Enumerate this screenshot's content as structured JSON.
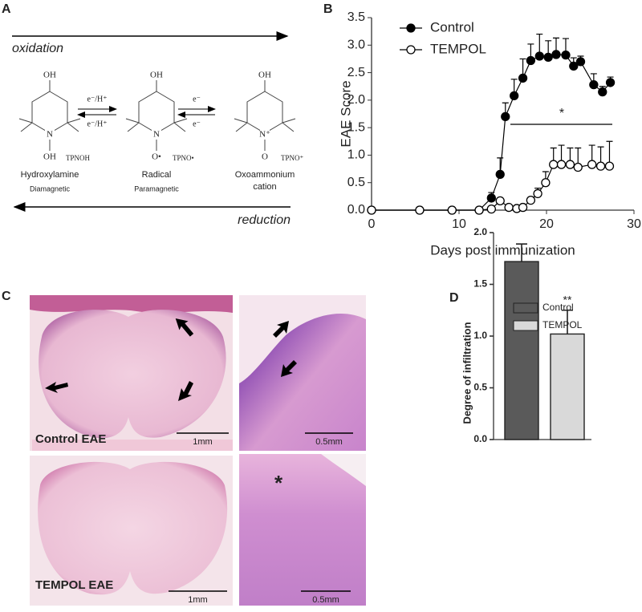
{
  "panel_labels": [
    "A",
    "B",
    "C",
    "D"
  ],
  "diagram": {
    "top_arrow": "oxidation",
    "bottom_arrow": "reduction",
    "molecules": [
      {
        "name": [
          "Hydroxylamine"
        ],
        "property": "Diamagnetic",
        "code": "TPNOH",
        "top": "OH",
        "center": "N",
        "bottom": "OH"
      },
      {
        "name": [
          "Radical"
        ],
        "property": "Paramagnetic",
        "code": "TPNO•",
        "top": "OH",
        "center": "N",
        "bottom": "O•"
      },
      {
        "name": [
          "Oxoammonium",
          "cation"
        ],
        "code": "TPNO⁺",
        "top": "OH",
        "center": "N⁺",
        "bottom": "O"
      }
    ],
    "reactions": [
      {
        "upper": "e⁻/H⁺",
        "lower": "e⁻/H⁺"
      },
      {
        "upper": "e⁻",
        "lower": "e⁻"
      }
    ]
  },
  "micrographs": {
    "rows": [
      {
        "label": "Control EAE",
        "scale_bars": [
          "1mm",
          "0.5mm"
        ]
      },
      {
        "label": "TEMPOL EAE",
        "scale_bars": [
          "1mm",
          "0.5mm"
        ],
        "marker": "*"
      }
    ]
  },
  "chart_data": [
    {
      "type": "line",
      "xlabel": "Days post immunization",
      "ylabel": "EAE Score",
      "xlim": [
        0,
        30
      ],
      "xticks": [
        0,
        10,
        20,
        30
      ],
      "ylim": [
        0,
        3.5
      ],
      "yticks": [
        {
          "value": 0,
          "label": "0.0"
        },
        0.5,
        {
          "value": 1,
          "label": "1.0"
        },
        1.5,
        {
          "value": 2,
          "label": "2.0"
        },
        2.5,
        {
          "value": 3,
          "label": "3.0"
        },
        3.5
      ],
      "legend": "upper left",
      "annotation": "*",
      "series": [
        {
          "name": "Control",
          "color": "#000000",
          "marker": "filled",
          "x": [
            0,
            5.5,
            9.2,
            12.3,
            13.7,
            14.7,
            15.3,
            16.3,
            17.3,
            18.2,
            19.2,
            20.2,
            21.1,
            22.2,
            23.1,
            23.9,
            25.4,
            26.4,
            27.3
          ],
          "values": [
            0,
            0,
            0,
            0,
            0.22,
            0.65,
            1.7,
            2.08,
            2.4,
            2.72,
            2.8,
            2.78,
            2.83,
            2.82,
            2.62,
            2.7,
            2.28,
            2.15,
            2.32
          ],
          "errors": [
            0,
            0,
            0,
            0,
            0.1,
            0.3,
            0.25,
            0.3,
            0.35,
            0.3,
            0.4,
            0.3,
            0.3,
            0.3,
            0.15,
            0.1,
            0.2,
            0.1,
            0.1
          ]
        },
        {
          "name": "TEMPOL",
          "color": "#000000",
          "marker": "open",
          "x": [
            0,
            5.5,
            9.2,
            12.3,
            13.7,
            14.7,
            15.7,
            16.6,
            17.3,
            18.2,
            19.0,
            19.9,
            20.8,
            21.7,
            22.7,
            23.6,
            25.2,
            26.2,
            27.2
          ],
          "values": [
            0,
            0,
            0,
            0,
            0.02,
            0.17,
            0.05,
            0.03,
            0.05,
            0.18,
            0.3,
            0.5,
            0.83,
            0.83,
            0.83,
            0.78,
            0.83,
            0.8,
            0.8
          ],
          "errors": [
            0,
            0,
            0,
            0,
            0,
            0,
            0,
            0,
            0,
            0.05,
            0.1,
            0.2,
            0.3,
            0.35,
            0.3,
            0.35,
            0.35,
            0.35,
            0.45
          ]
        }
      ]
    },
    {
      "type": "bar",
      "ylabel": "Degree of infiltration",
      "ylim": [
        0,
        2
      ],
      "yticks": [
        {
          "value": 0,
          "label": "0.0"
        },
        0.5,
        {
          "value": 1,
          "label": "1.0"
        },
        1.5,
        {
          "value": 2,
          "label": "2.0"
        }
      ],
      "legend": "upper right",
      "annotation": "**",
      "series": [
        {
          "name": "Control",
          "color": "#5a5a5a",
          "values": [
            1.72
          ],
          "errors": [
            0.17
          ]
        },
        {
          "name": "TEMPOL",
          "color": "#d9d9d9",
          "values": [
            1.02
          ],
          "errors": [
            0.23
          ]
        }
      ]
    }
  ]
}
